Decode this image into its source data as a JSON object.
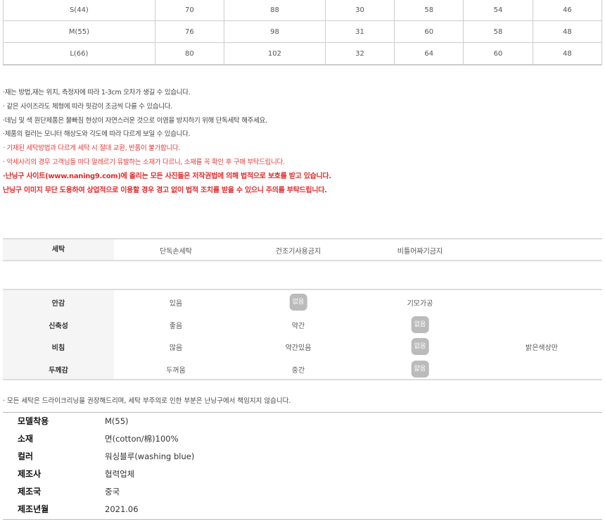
{
  "size_table": {
    "rows": [
      [
        "S(44)",
        "70",
        "88",
        "30",
        "58",
        "54",
        "46"
      ],
      [
        "M(55)",
        "76",
        "98",
        "31",
        "60",
        "58",
        "48"
      ],
      [
        "L(66)",
        "80",
        "102",
        "32",
        "64",
        "60",
        "48"
      ]
    ]
  },
  "notes": [
    {
      "text": "·재는 방법,재는 위치, 측정자에 따라 1-3cm 오차가 생길 수 있습니다.",
      "style": "normal"
    },
    {
      "text": "· 같은 사이즈라도 체형에 따라 핏감이 조금씩 다를 수 있습니다.",
      "style": "normal"
    },
    {
      "text": "·데님 및 색 원단제품은 물빠짐 현상이 자연스러운 것으로 이염을 방지하기 위해 단독세탁 해주세요.",
      "style": "normal"
    },
    {
      "text": "·제품의 컬러는 모니터 해상도와 각도에 따라 다르게 보일 수 있습니다.",
      "style": "normal"
    },
    {
      "text": "· 기재된 세탁방법과 다르게 세탁 시 절대 교환, 반품이 불가합니다.",
      "style": "red"
    },
    {
      "text": "· 악세사리의 경우 고객님들 마다 알레르기 유발하는 소재가 다르니, 소재를 꼭 확인 후 구매 부탁드립니다.",
      "style": "red"
    },
    {
      "text": "·난닝구 사이트(www.naning9.com)에 올리는 모든 사진들은 저작권법에 의해 법적으로 보호를 받고 있습니다.",
      "style": "bold"
    },
    {
      "text": "난닝구 이미지 무단 도용하여 상업적으로 이용할 경우 경고 없이 법적 조치를 받을 수 있으니 주의를 부탁드립니다.",
      "style": "bold"
    }
  ],
  "wash": {
    "label": "세탁",
    "options": [
      "단독손세탁",
      "건조기사용금지",
      "비틀어짜기금지"
    ]
  },
  "feel": [
    {
      "label": "안감",
      "options": [
        "있음",
        "없음",
        "기모가공",
        ""
      ],
      "selected": 1
    },
    {
      "label": "신축성",
      "options": [
        "좋음",
        "약간",
        "없음",
        ""
      ],
      "selected": 2
    },
    {
      "label": "비침",
      "options": [
        "많음",
        "약간있음",
        "없음",
        "밝은색상만"
      ],
      "selected": 2
    },
    {
      "label": "두께감",
      "options": [
        "두꺼움",
        "중간",
        "얇음",
        ""
      ],
      "selected": 2
    }
  ],
  "badge_color": "#bbbbbb",
  "wash_note": "· 모든 세탁은 드라이크리닝을 권장해드리며, 세탁 부주의로 인한 부분은 난닝구에서 책임지지 않습니다.",
  "spec": [
    {
      "key": "모델착용",
      "value": "M(55)"
    },
    {
      "key": "소재",
      "value": "면(cotton/棉)100%"
    },
    {
      "key": "컬러",
      "value": "워싱블루(washing blue)"
    },
    {
      "key": "제조사",
      "value": "협력업체"
    },
    {
      "key": "제조국",
      "value": "중국"
    },
    {
      "key": "제조년월",
      "value": "2021.06"
    }
  ]
}
